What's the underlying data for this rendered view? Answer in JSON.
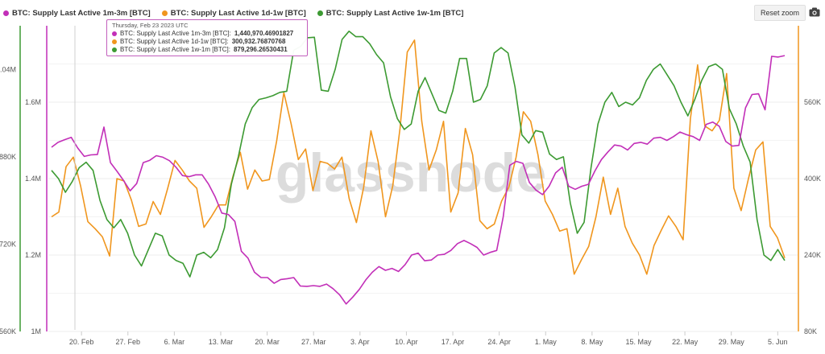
{
  "legend": [
    {
      "name": "BTC: Supply Last Active 1m-3m [BTC]",
      "color": "#c22fb8"
    },
    {
      "name": "BTC: Supply Last Active 1d-1w [BTC]",
      "color": "#f0961e"
    },
    {
      "name": "BTC: Supply Last Active 1w-1m [BTC]",
      "color": "#3c9a32"
    }
  ],
  "toolbar": {
    "reset_label": "Reset zoom",
    "camera_icon": "camera-icon"
  },
  "tooltip": {
    "date": "Thursday, Feb 23 2023 UTC",
    "rows": [
      {
        "label": "BTC: Supply Last Active 1m-3m [BTC]:",
        "value": "1,440,970.46901827",
        "color": "#c22fb8"
      },
      {
        "label": "BTC: Supply Last Active 1d-1w [BTC]:",
        "value": "300,932.76870768",
        "color": "#f0961e"
      },
      {
        "label": "BTC: Supply Last Active 1w-1m [BTC]:",
        "value": "879,296.26530431",
        "color": "#3c9a32"
      }
    ]
  },
  "watermark": "glassnode",
  "chart_data": {
    "type": "line",
    "x_start": "2023-02-15",
    "x_end": "2023-06-08",
    "x_ticks": [
      {
        "date": "2023-02-20",
        "label": "20. Feb"
      },
      {
        "date": "2023-02-27",
        "label": "27. Feb"
      },
      {
        "date": "2023-03-06",
        "label": "6. Mar"
      },
      {
        "date": "2023-03-13",
        "label": "13. Mar"
      },
      {
        "date": "2023-03-20",
        "label": "20. Mar"
      },
      {
        "date": "2023-03-27",
        "label": "27. Mar"
      },
      {
        "date": "2023-04-03",
        "label": "3. Apr"
      },
      {
        "date": "2023-04-10",
        "label": "10. Apr"
      },
      {
        "date": "2023-04-17",
        "label": "17. Apr"
      },
      {
        "date": "2023-04-24",
        "label": "24. Apr"
      },
      {
        "date": "2023-05-01",
        "label": "1. May"
      },
      {
        "date": "2023-05-08",
        "label": "8. May"
      },
      {
        "date": "2023-05-15",
        "label": "15. May"
      },
      {
        "date": "2023-05-22",
        "label": "22. May"
      },
      {
        "date": "2023-05-29",
        "label": "29. May"
      },
      {
        "date": "2023-06-05",
        "label": "5. Jun"
      }
    ],
    "axes": {
      "green": {
        "min": 560000,
        "max": 1120000,
        "ticks": [
          {
            "v": 560000,
            "label": "560K"
          },
          {
            "v": 720000,
            "label": "720K"
          },
          {
            "v": 880000,
            "label": "880K"
          },
          {
            "v": 1040000,
            "label": "1.04M"
          }
        ]
      },
      "magenta": {
        "min": 1000000,
        "max": 1800000,
        "ticks": [
          {
            "v": 1000000,
            "label": "1M"
          },
          {
            "v": 1200000,
            "label": "1.2M"
          },
          {
            "v": 1400000,
            "label": "1.4M"
          },
          {
            "v": 1600000,
            "label": "1.6M"
          }
        ]
      },
      "orange": {
        "min": 80000,
        "max": 720000,
        "ticks": [
          {
            "v": 80000,
            "label": "80K"
          },
          {
            "v": 240000,
            "label": "240K"
          },
          {
            "v": 400000,
            "label": "400K"
          },
          {
            "v": 560000,
            "label": "560K"
          }
        ]
      }
    },
    "grid": true,
    "legend_position": "top-left",
    "series": [
      {
        "name": "BTC: Supply Last Active 1m-3m [BTC]",
        "color": "#c22fb8",
        "axis": "magenta",
        "values": [
          1482000,
          1495000,
          1502000,
          1508000,
          1480000,
          1458000,
          1462000,
          1463000,
          1535000,
          1442000,
          1419000,
          1395000,
          1368000,
          1387000,
          1442000,
          1448000,
          1460000,
          1456000,
          1447000,
          1430000,
          1408000,
          1405000,
          1410000,
          1410000,
          1385000,
          1352000,
          1310000,
          1306000,
          1288000,
          1210000,
          1192000,
          1155000,
          1141000,
          1141000,
          1126000,
          1136000,
          1138000,
          1141000,
          1119000,
          1118000,
          1120000,
          1118000,
          1124000,
          1112000,
          1096000,
          1072000,
          1090000,
          1110000,
          1135000,
          1155000,
          1170000,
          1160000,
          1165000,
          1157000,
          1175000,
          1200000,
          1205000,
          1185000,
          1187000,
          1200000,
          1202000,
          1212000,
          1230000,
          1238000,
          1230000,
          1220000,
          1200000,
          1207000,
          1212000,
          1300000,
          1435000,
          1445000,
          1440000,
          1390000,
          1370000,
          1358000,
          1380000,
          1415000,
          1430000,
          1380000,
          1372000,
          1380000,
          1385000,
          1420000,
          1450000,
          1470000,
          1488000,
          1485000,
          1475000,
          1492000,
          1495000,
          1490000,
          1506000,
          1508000,
          1500000,
          1510000,
          1522000,
          1515000,
          1510000,
          1500000,
          1542000,
          1548000,
          1537000,
          1497000,
          1485000,
          1487000,
          1585000,
          1620000,
          1622000,
          1580000,
          1720000,
          1718000,
          1722000
        ]
      },
      {
        "name": "BTC: Supply Last Active 1d-1w [BTC]",
        "color": "#f0961e",
        "axis": "orange",
        "values": [
          320000,
          330000,
          425000,
          445000,
          385000,
          310000,
          295000,
          278000,
          238000,
          400000,
          395000,
          355000,
          300000,
          305000,
          352000,
          325000,
          380000,
          438000,
          418000,
          395000,
          380000,
          298000,
          320000,
          345000,
          345000,
          405000,
          455000,
          378000,
          418000,
          395000,
          398000,
          478000,
          580000,
          515000,
          440000,
          462000,
          375000,
          436000,
          432000,
          420000,
          445000,
          358000,
          308000,
          382000,
          500000,
          435000,
          320000,
          385000,
          505000,
          665000,
          690000,
          520000,
          418000,
          460000,
          520000,
          330000,
          370000,
          505000,
          450000,
          312000,
          295000,
          305000,
          353000,
          382000,
          445000,
          540000,
          520000,
          450000,
          353000,
          325000,
          290000,
          295000,
          200000,
          230000,
          258000,
          320000,
          403000,
          325000,
          380000,
          300000,
          265000,
          240000,
          200000,
          260000,
          292000,
          322000,
          300000,
          272000,
          525000,
          638000,
          510000,
          500000,
          522000,
          620000,
          380000,
          333000,
          400000,
          460000,
          477000,
          300000,
          276000,
          234000
        ]
      },
      {
        "name": "BTC: Supply Last Active 1w-1m [BTC]",
        "color": "#3c9a32",
        "axis": "green",
        "values": [
          855000,
          840000,
          815000,
          835000,
          860000,
          870000,
          855000,
          800000,
          765000,
          750000,
          765000,
          740000,
          700000,
          680000,
          710000,
          740000,
          735000,
          700000,
          690000,
          685000,
          660000,
          700000,
          705000,
          695000,
          710000,
          750000,
          830000,
          880000,
          940000,
          970000,
          985000,
          988000,
          992000,
          998000,
          1000000,
          1075000,
          1082000,
          1098000,
          1099000,
          1002000,
          1000000,
          1040000,
          1095000,
          1110000,
          1100000,
          1100000,
          1087000,
          1067000,
          1052000,
          990000,
          950000,
          930000,
          940000,
          1000000,
          1025000,
          995000,
          965000,
          960000,
          1000000,
          1060000,
          1060000,
          980000,
          985000,
          1010000,
          1070000,
          1080000,
          1070000,
          1008000,
          920000,
          905000,
          928000,
          925000,
          885000,
          875000,
          880000,
          795000,
          740000,
          760000,
          860000,
          940000,
          980000,
          998000,
          972000,
          980000,
          975000,
          988000,
          1020000,
          1040000,
          1050000,
          1030000,
          1010000,
          980000,
          955000,
          985000,
          1020000,
          1045000,
          1050000,
          1040000,
          968000,
          940000,
          900000,
          870000,
          765000,
          700000,
          690000,
          710000,
          690000
        ]
      }
    ]
  }
}
